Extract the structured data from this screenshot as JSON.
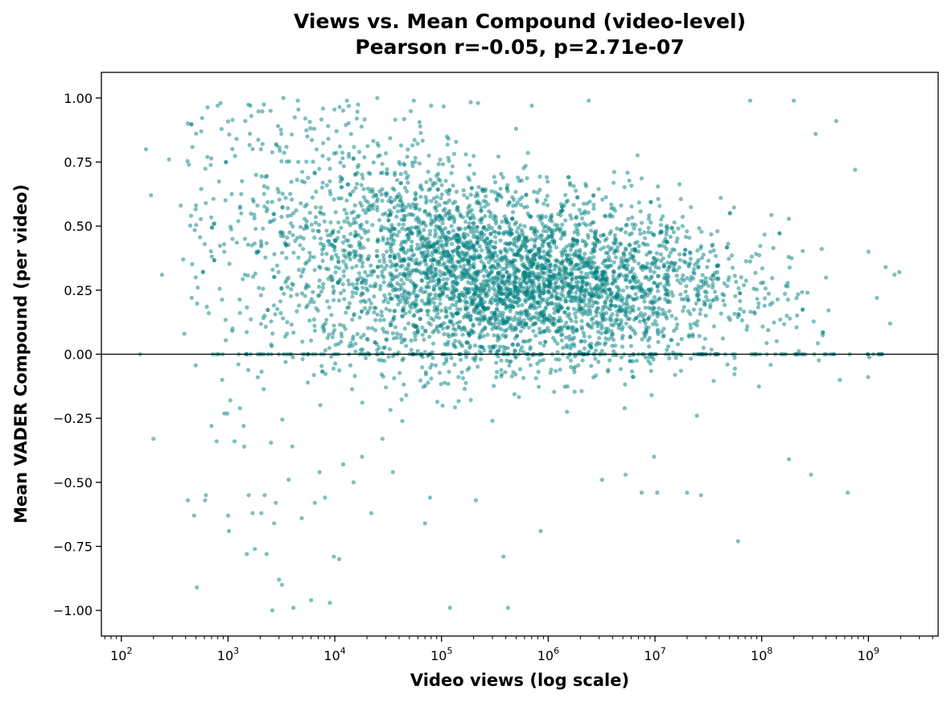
{
  "chart_data": {
    "type": "scatter",
    "title": "Views vs. Mean Compound (video-level)",
    "subtitle": "Pearson r=-0.05, p=2.71e-07",
    "xlabel": "Video views (log scale)",
    "ylabel": "Mean VADER Compound (per video)",
    "x_scale": "log",
    "xlim": [
      65,
      4500000000
    ],
    "ylim": [
      -1.1,
      1.1
    ],
    "x_ticks": [
      100,
      1000,
      10000,
      100000,
      1000000,
      10000000,
      100000000,
      1000000000
    ],
    "x_tick_labels": [
      {
        "base": "10",
        "exp": "2"
      },
      {
        "base": "10",
        "exp": "3"
      },
      {
        "base": "10",
        "exp": "4"
      },
      {
        "base": "10",
        "exp": "5"
      },
      {
        "base": "10",
        "exp": "6"
      },
      {
        "base": "10",
        "exp": "7"
      },
      {
        "base": "10",
        "exp": "8"
      },
      {
        "base": "10",
        "exp": "9"
      }
    ],
    "y_ticks": [
      1.0,
      0.75,
      0.5,
      0.25,
      0.0,
      -0.25,
      -0.5,
      -0.75,
      -1.0
    ],
    "y_tick_labels": [
      "1.00",
      "0.75",
      "0.50",
      "0.25",
      "0.00",
      "−0.25",
      "−0.50",
      "−0.75",
      "−1.00"
    ],
    "reference_line_y": 0,
    "grid": false,
    "legend": "none",
    "point_color": "#008080",
    "point_alpha": 0.5,
    "series": [
      {
        "points": [
          [
            170,
            0.8
          ],
          [
            190,
            0.62
          ],
          [
            200,
            -0.33
          ],
          [
            240,
            0.31
          ],
          [
            280,
            0.76
          ],
          [
            150,
            0.0
          ],
          [
            360,
            0.58
          ],
          [
            380,
            0.37
          ],
          [
            390,
            0.08
          ],
          [
            420,
            -0.57
          ],
          [
            430,
            0.74
          ],
          [
            450,
            0.54
          ],
          [
            480,
            -0.63
          ],
          [
            510,
            -0.91
          ],
          [
            520,
            0.26
          ],
          [
            560,
            0.87
          ],
          [
            580,
            0.32
          ],
          [
            610,
            -0.57
          ],
          [
            620,
            -0.55
          ],
          [
            640,
            0.77
          ],
          [
            660,
            0.16
          ],
          [
            700,
            -0.28
          ],
          [
            780,
            -0.34
          ],
          [
            800,
            0.97
          ],
          [
            850,
            0.98
          ],
          [
            880,
            -0.1
          ],
          [
            920,
            0.4
          ],
          [
            960,
            0.75
          ],
          [
            1000,
            -0.63
          ],
          [
            1020,
            -0.69
          ],
          [
            1050,
            -0.18
          ],
          [
            1100,
            0.45
          ],
          [
            1150,
            -0.34
          ],
          [
            1200,
            0.84
          ],
          [
            1250,
            -0.04
          ],
          [
            1330,
            0.55
          ],
          [
            1400,
            -0.28
          ],
          [
            1450,
            0.91
          ],
          [
            1500,
            -0.78
          ],
          [
            1560,
            -0.55
          ],
          [
            1620,
            0.97
          ],
          [
            1700,
            -0.62
          ],
          [
            1780,
            -0.76
          ],
          [
            1830,
            0.7
          ],
          [
            1900,
            -0.09
          ],
          [
            2050,
            -0.62
          ],
          [
            2200,
            -0.55
          ],
          [
            2300,
            -0.78
          ],
          [
            2500,
            0.95
          ],
          [
            2600,
            -1.0
          ],
          [
            2700,
            -0.66
          ],
          [
            2800,
            -0.58
          ],
          [
            3000,
            -0.88
          ],
          [
            3200,
            -0.9
          ],
          [
            3300,
            1.0
          ],
          [
            3700,
            -0.49
          ],
          [
            4000,
            -0.36
          ],
          [
            4100,
            -0.99
          ],
          [
            4500,
            0.99
          ],
          [
            4900,
            -0.64
          ],
          [
            5300,
            0.92
          ],
          [
            6000,
            -0.96
          ],
          [
            6500,
            -0.58
          ],
          [
            7200,
            -0.46
          ],
          [
            8100,
            -0.56
          ],
          [
            9000,
            -0.97
          ],
          [
            9800,
            -0.79
          ],
          [
            11000,
            -0.8
          ],
          [
            12000,
            -0.43
          ],
          [
            13000,
            0.99
          ],
          [
            15000,
            -0.5
          ],
          [
            18000,
            -0.4
          ],
          [
            22000,
            -0.62
          ],
          [
            25000,
            1.0
          ],
          [
            28000,
            -0.33
          ],
          [
            35000,
            -0.46
          ],
          [
            40000,
            0.75
          ],
          [
            55000,
            0.99
          ],
          [
            70000,
            -0.66
          ],
          [
            78000,
            -0.56
          ],
          [
            80000,
            0.97
          ],
          [
            120000,
            -0.99
          ],
          [
            210000,
            -0.57
          ],
          [
            220000,
            0.98
          ],
          [
            300000,
            -0.26
          ],
          [
            380000,
            -0.79
          ],
          [
            420000,
            -0.99
          ],
          [
            500000,
            0.88
          ],
          [
            700000,
            0.97
          ],
          [
            850000,
            -0.69
          ],
          [
            2400000,
            0.99
          ],
          [
            3200000,
            -0.49
          ],
          [
            5300000,
            -0.47
          ],
          [
            7500000,
            -0.54
          ],
          [
            9800000,
            -0.4
          ],
          [
            10500000,
            -0.54
          ],
          [
            20000000,
            -0.54
          ],
          [
            27000000,
            -0.55
          ],
          [
            60000000,
            -0.73
          ],
          [
            78000000,
            0.99
          ],
          [
            180000000,
            -0.41
          ],
          [
            200000000,
            0.99
          ],
          [
            290000000,
            -0.47
          ],
          [
            320000000,
            0.86
          ],
          [
            500000000,
            0.91
          ],
          [
            540000000,
            -0.1
          ],
          [
            640000000,
            -0.54
          ],
          [
            750000000,
            0.72
          ],
          [
            1000000000,
            0.4
          ],
          [
            1300000000,
            0.0
          ],
          [
            1450000000,
            0.34
          ],
          [
            1600000000,
            0.12
          ],
          [
            1950000000,
            0.32
          ],
          [
            1200000000,
            0.22
          ]
        ],
        "dense_cloud": {
          "description_points": [
            {
              "x": 3000,
              "y_center": 0.45,
              "y_spread": 0.28
            },
            {
              "x": 20000,
              "y_center": 0.38,
              "y_spread": 0.24
            },
            {
              "x": 200000,
              "y_center": 0.3,
              "y_spread": 0.18
            },
            {
              "x": 2000000,
              "y_center": 0.28,
              "y_spread": 0.16
            },
            {
              "x": 30000000,
              "y_center": 0.26,
              "y_spread": 0.15
            },
            {
              "x": 300000000,
              "y_center": 0.23,
              "y_spread": 0.14
            }
          ]
        },
        "zero_line_points_count": 160
      }
    ]
  }
}
